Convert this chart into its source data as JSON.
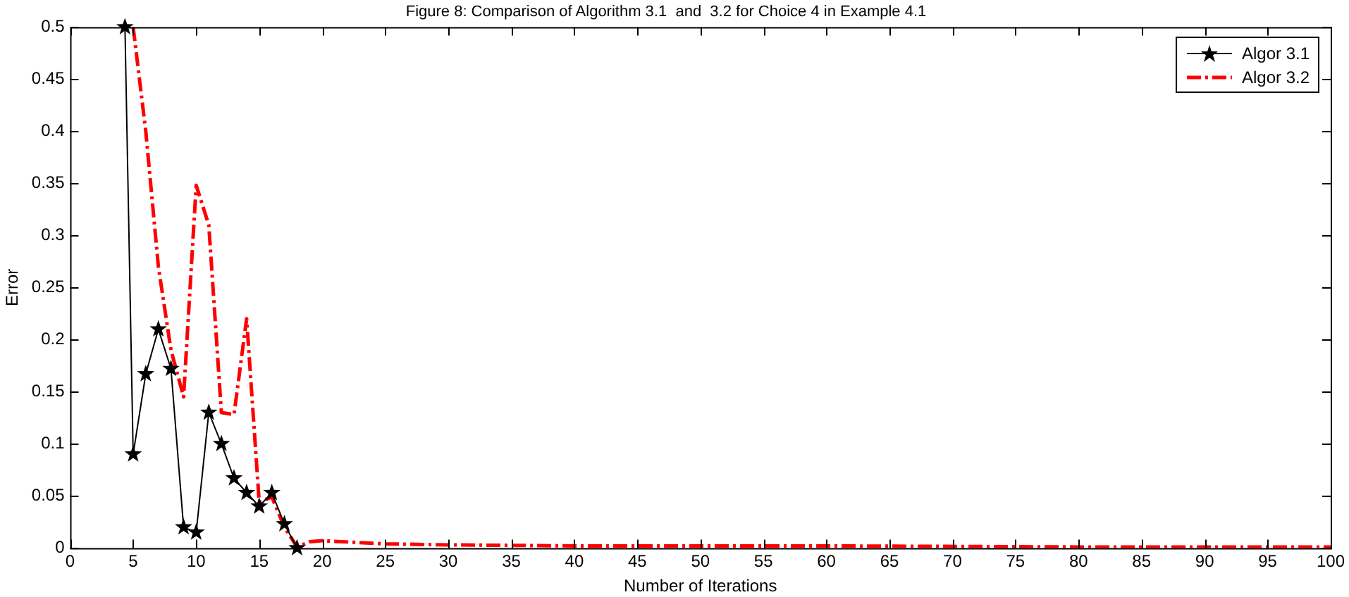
{
  "chart_data": {
    "type": "line",
    "title": "Figure 8: Comparison of Algorithm 3.1  and  3.2 for Choice 4 in Example 4.1",
    "xlabel": "Number of Iterations",
    "ylabel": "Error",
    "series": [
      {
        "name": "Algor 3.1",
        "color": "#000000",
        "marker": "star",
        "line_style": "solid",
        "x": [
          4.35,
          5,
          6,
          7,
          8,
          9,
          10,
          11,
          12,
          13,
          14,
          15,
          16,
          17,
          18
        ],
        "values": [
          0.5,
          0.09,
          0.167,
          0.21,
          0.172,
          0.02,
          0.015,
          0.13,
          0.1,
          0.067,
          0.053,
          0.04,
          0.053,
          0.023,
          0
        ]
      },
      {
        "name": "Algor 3.2",
        "color": "#ff0000",
        "marker": "none",
        "line_style": "dashed",
        "x": [
          5,
          6,
          7,
          8,
          9,
          10,
          11,
          12,
          13,
          14,
          15,
          16,
          17,
          18,
          19,
          20,
          25,
          30,
          40,
          60,
          80,
          100
        ],
        "values": [
          0.5,
          0.4,
          0.27,
          0.19,
          0.145,
          0.348,
          0.31,
          0.13,
          0.128,
          0.22,
          0.044,
          0.049,
          0.02,
          0.001,
          0.006,
          0.007,
          0.004,
          0.003,
          0.002,
          0.002,
          0.001,
          0.001
        ]
      }
    ],
    "xlim": [
      0,
      100
    ],
    "xticks": [
      0,
      5,
      10,
      15,
      20,
      25,
      30,
      35,
      40,
      45,
      50,
      55,
      60,
      65,
      70,
      75,
      80,
      85,
      90,
      95,
      100
    ],
    "ylim": [
      0,
      0.5
    ],
    "yticks": [
      0,
      0.05,
      0.1,
      0.15,
      0.2,
      0.25,
      0.3,
      0.35,
      0.4,
      0.45,
      0.5
    ],
    "grid": false,
    "legend": "top right"
  }
}
